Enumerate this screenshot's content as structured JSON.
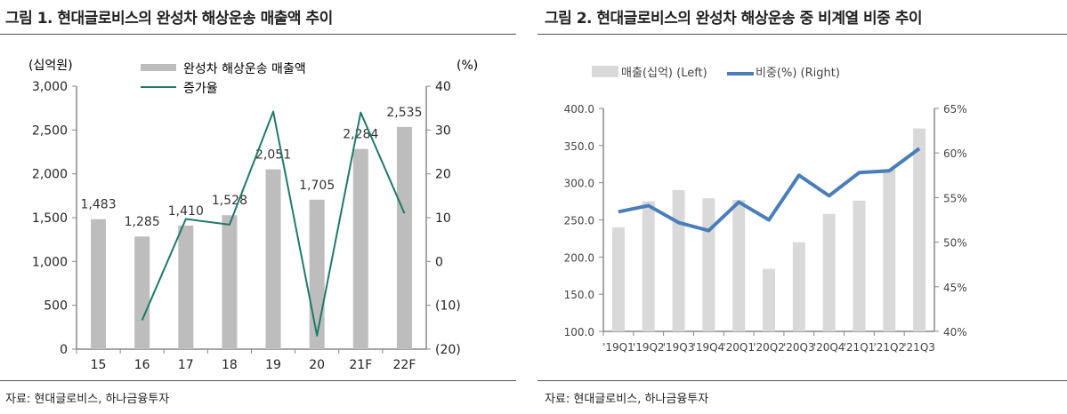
{
  "figure1": {
    "title": "그림 1. 현대글로비스의 완성차 해상운송 매출액 추이",
    "source": "자료: 현대글로비스, 하나금융투자"
  },
  "figure2": {
    "title": "그림 2. 현대글로비스의 완성차 해상운송 중 비계열 비중 추이",
    "source": "자료: 현대글로비스, 하나금융투자"
  },
  "chart_data": [
    {
      "type": "bar+line",
      "left_unit": "(십억원)",
      "right_unit": "(%)",
      "categories": [
        "15",
        "16",
        "17",
        "18",
        "19",
        "20",
        "21F",
        "22F"
      ],
      "ylim_left": [
        0,
        3000
      ],
      "yticks_left": [
        "0",
        "500",
        "1,000",
        "1,500",
        "2,000",
        "2,500",
        "3,000"
      ],
      "ylim_right": [
        -20,
        40
      ],
      "yticks_right": [
        "(20)",
        "(10)",
        "0",
        "10",
        "20",
        "30",
        "40"
      ],
      "legend_placement": "top-center",
      "grid": false,
      "series": [
        {
          "name": "완성차 해상운송 매출액",
          "type": "bar",
          "axis": "left",
          "color": "#bdbdbd",
          "values": [
            1483,
            1285,
            1410,
            1528,
            2051,
            1705,
            2284,
            2535
          ],
          "labels": [
            "1,483",
            "1,285",
            "1,410",
            "1,528",
            "2,051",
            "1,705",
            "2,284",
            "2,535"
          ]
        },
        {
          "name": "증가율",
          "type": "line",
          "axis": "right",
          "color": "#1f7a6a",
          "values": [
            null,
            -13.4,
            9.7,
            8.4,
            34.2,
            -16.9,
            34.0,
            11.0
          ]
        }
      ]
    },
    {
      "type": "bar+line",
      "categories": [
        "'19Q1",
        "'19Q2",
        "'19Q3",
        "'19Q4",
        "'20Q1",
        "'20Q2",
        "'20Q3",
        "'20Q4",
        "'21Q1",
        "'21Q2",
        "'21Q3"
      ],
      "ylim_left": [
        100,
        400
      ],
      "yticks_left": [
        "100.0",
        "150.0",
        "200.0",
        "250.0",
        "300.0",
        "350.0",
        "400.0"
      ],
      "ylim_right": [
        40,
        65
      ],
      "yticks_right": [
        "40%",
        "45%",
        "50%",
        "55%",
        "60%",
        "65%"
      ],
      "legend_placement": "top-left",
      "grid": false,
      "series": [
        {
          "name": "매출(십억) (Left)",
          "type": "bar",
          "axis": "left",
          "color": "#d9d9d9",
          "values": [
            240,
            275,
            290,
            279,
            277,
            184,
            220,
            258,
            276,
            318,
            373
          ]
        },
        {
          "name": "비중(%) (Right)",
          "type": "line",
          "axis": "right",
          "color": "#4a7ebb",
          "values": [
            53.4,
            54.1,
            52.2,
            51.3,
            54.5,
            52.5,
            57.5,
            55.2,
            57.8,
            58.0,
            60.5
          ]
        }
      ]
    }
  ]
}
